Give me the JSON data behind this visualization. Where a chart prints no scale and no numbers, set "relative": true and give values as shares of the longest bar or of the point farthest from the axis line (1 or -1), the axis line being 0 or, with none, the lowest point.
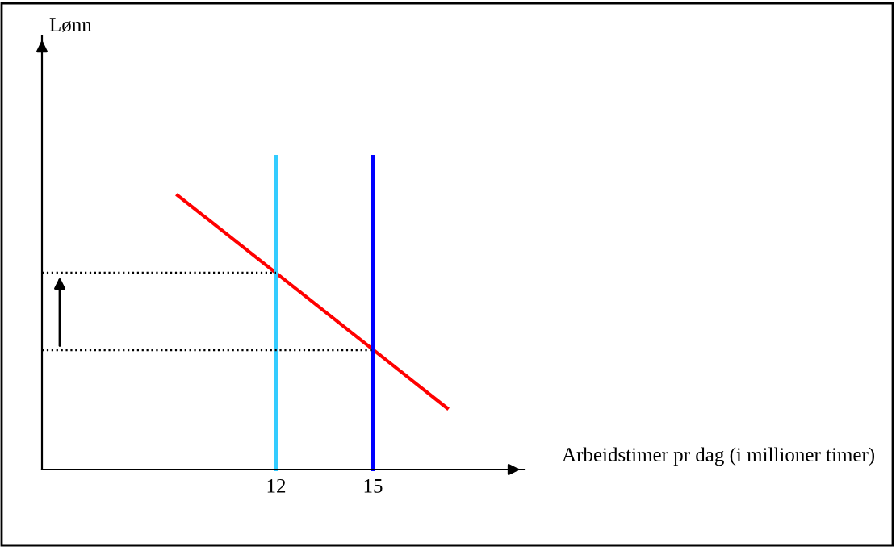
{
  "chart_data": {
    "type": "line",
    "relative": true,
    "xlabel": "Arbeidstimer pr dag (i millioner timer)",
    "annotations": [
      "Lønn"
    ],
    "xlim": [
      4.75,
      19.7
    ],
    "xticks": [
      12,
      15
    ],
    "legend": false,
    "marker": "none",
    "line_style": "solid",
    "series": [
      {
        "color": "#ff0000",
        "x": [
          8.95,
          17.3
        ],
        "values": [
          0.876,
          0.196
        ]
      },
      {
        "color": "#33ccff",
        "x": [
          12,
          12
        ],
        "values": [
          0,
          1
        ]
      },
      {
        "color": "#0000ff",
        "x": [
          15,
          15
        ],
        "values": [
          0,
          1
        ]
      },
      {
        "color": "#000000",
        "x": [
          4.75,
          12
        ],
        "values": [
          0.629,
          0.629
        ],
        "line_style": "dotted"
      },
      {
        "color": "#000000",
        "x": [
          4.75,
          15
        ],
        "values": [
          0.381,
          0.381
        ],
        "line_style": "dotted"
      }
    ]
  }
}
